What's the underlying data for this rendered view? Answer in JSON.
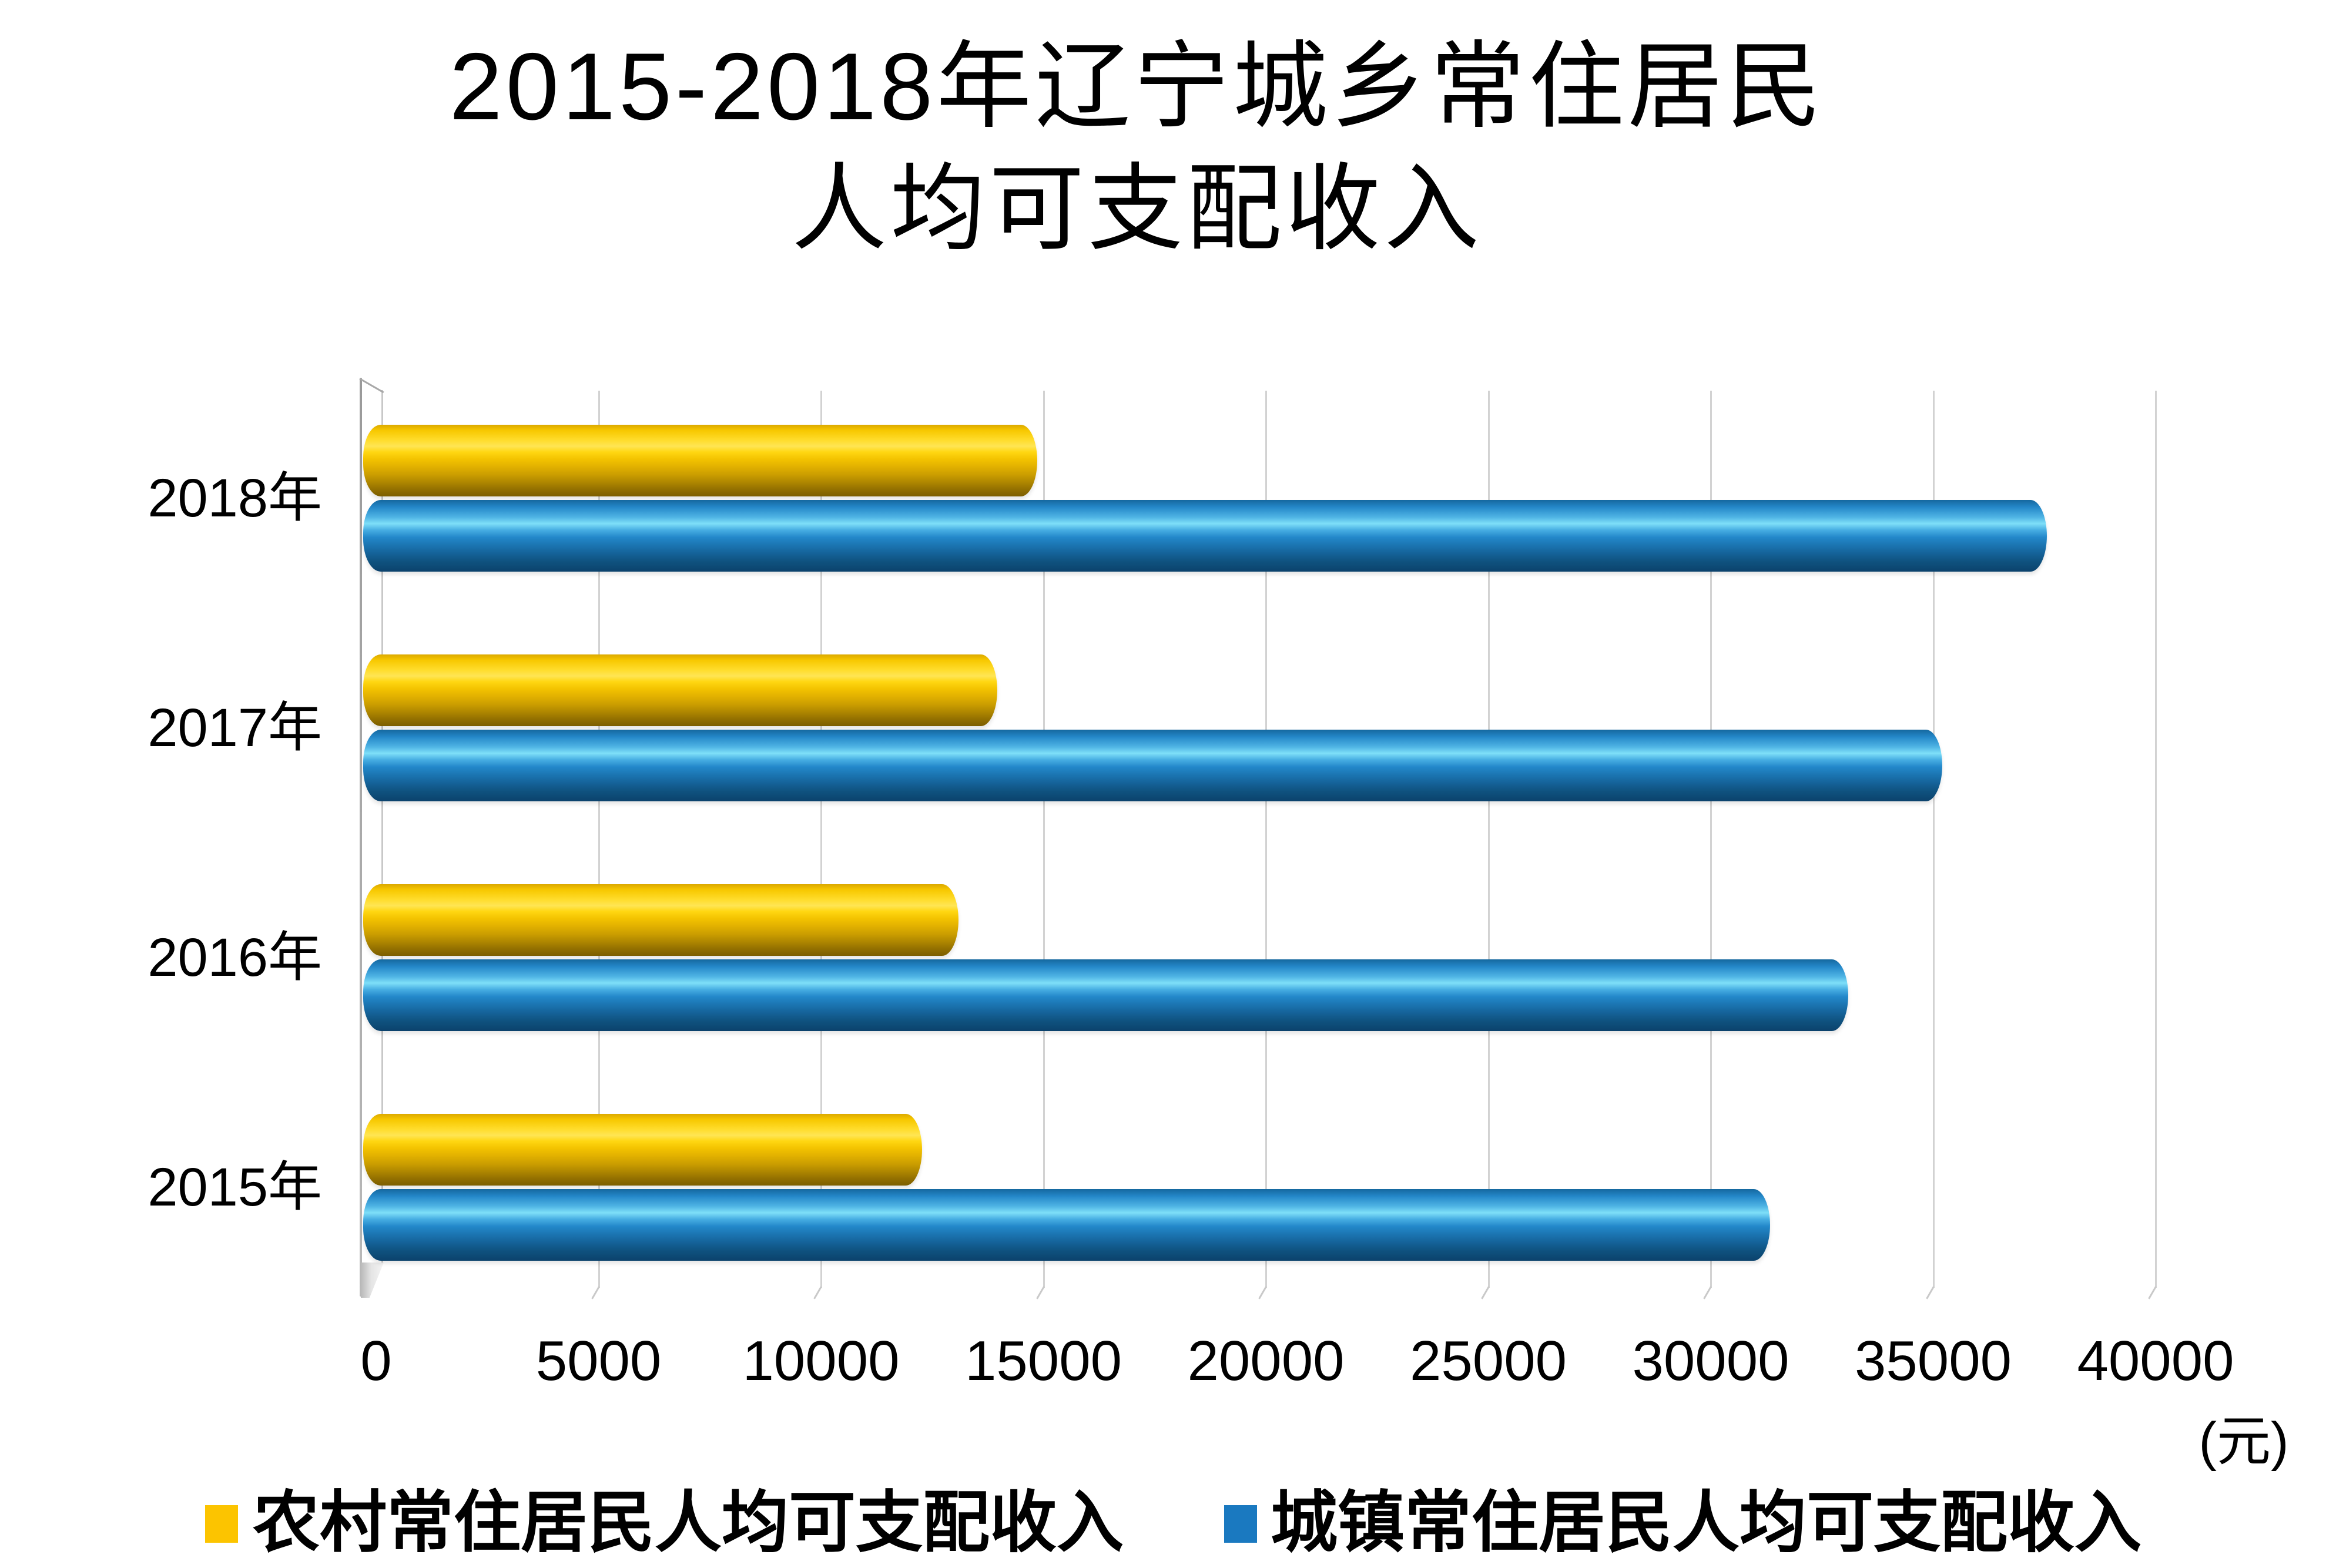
{
  "title": {
    "line1": "2015-2018年辽宁城乡常住居民",
    "line2": "人均可支配收入"
  },
  "unit_label": "(元)",
  "legend": {
    "items": [
      {
        "label": "农村常住居民人均可支配收入",
        "color": "#fcc400"
      },
      {
        "label": "城镇常住居民人均可支配收入",
        "color": "#1a79c0"
      }
    ]
  },
  "chart_data": {
    "type": "bar",
    "orientation": "horizontal",
    "title": "2015-2018年辽宁城乡常住居民人均可支配收入",
    "unit": "元",
    "categories": [
      "2018年",
      "2017年",
      "2016年",
      "2015年"
    ],
    "series": [
      {
        "name": "农村常住居民人均可支配收入",
        "color": "#fcc400",
        "values": [
          14656,
          13747,
          12881,
          12057
        ]
      },
      {
        "name": "城镇常住居民人均可支配收入",
        "color": "#1a79c0",
        "values": [
          37342,
          34993,
          32876,
          31126
        ]
      }
    ],
    "xlim": [
      0,
      40000
    ],
    "xticks": [
      0,
      5000,
      10000,
      15000,
      20000,
      25000,
      30000,
      35000,
      40000
    ],
    "grid": "vertical-gridlines-on",
    "legend_position": "bottom",
    "style": "3d-cylinder-bars"
  }
}
